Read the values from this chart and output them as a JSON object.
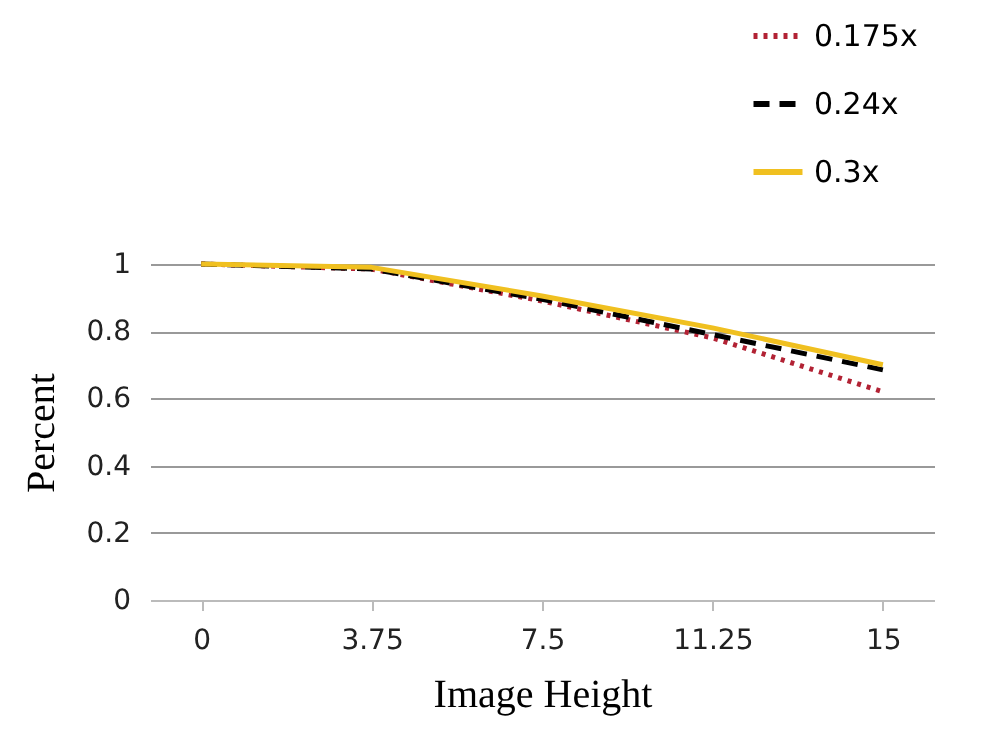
{
  "chart_data": {
    "type": "line",
    "xlabel": "Image Height",
    "ylabel": "Percent",
    "categories": [
      "0",
      "3.75",
      "7.5",
      "11.25",
      "15"
    ],
    "series": [
      {
        "name": "0.175x",
        "color": "#b22234",
        "line_style": "dotted",
        "values": [
          1,
          0.985,
          0.89,
          0.78,
          0.62
        ]
      },
      {
        "name": "0.24x",
        "color": "#000000",
        "line_style": "dashed",
        "values": [
          1,
          0.985,
          0.895,
          0.79,
          0.685
        ]
      },
      {
        "name": "0.3x",
        "color": "#f0c020",
        "line_style": "solid",
        "values": [
          1,
          0.99,
          0.905,
          0.81,
          0.7
        ]
      }
    ],
    "ylim": [
      0,
      1
    ],
    "yticks": [
      0,
      0.2,
      0.4,
      0.6,
      0.8,
      1
    ],
    "grid": "y",
    "legend": "top right",
    "marker": "none"
  }
}
